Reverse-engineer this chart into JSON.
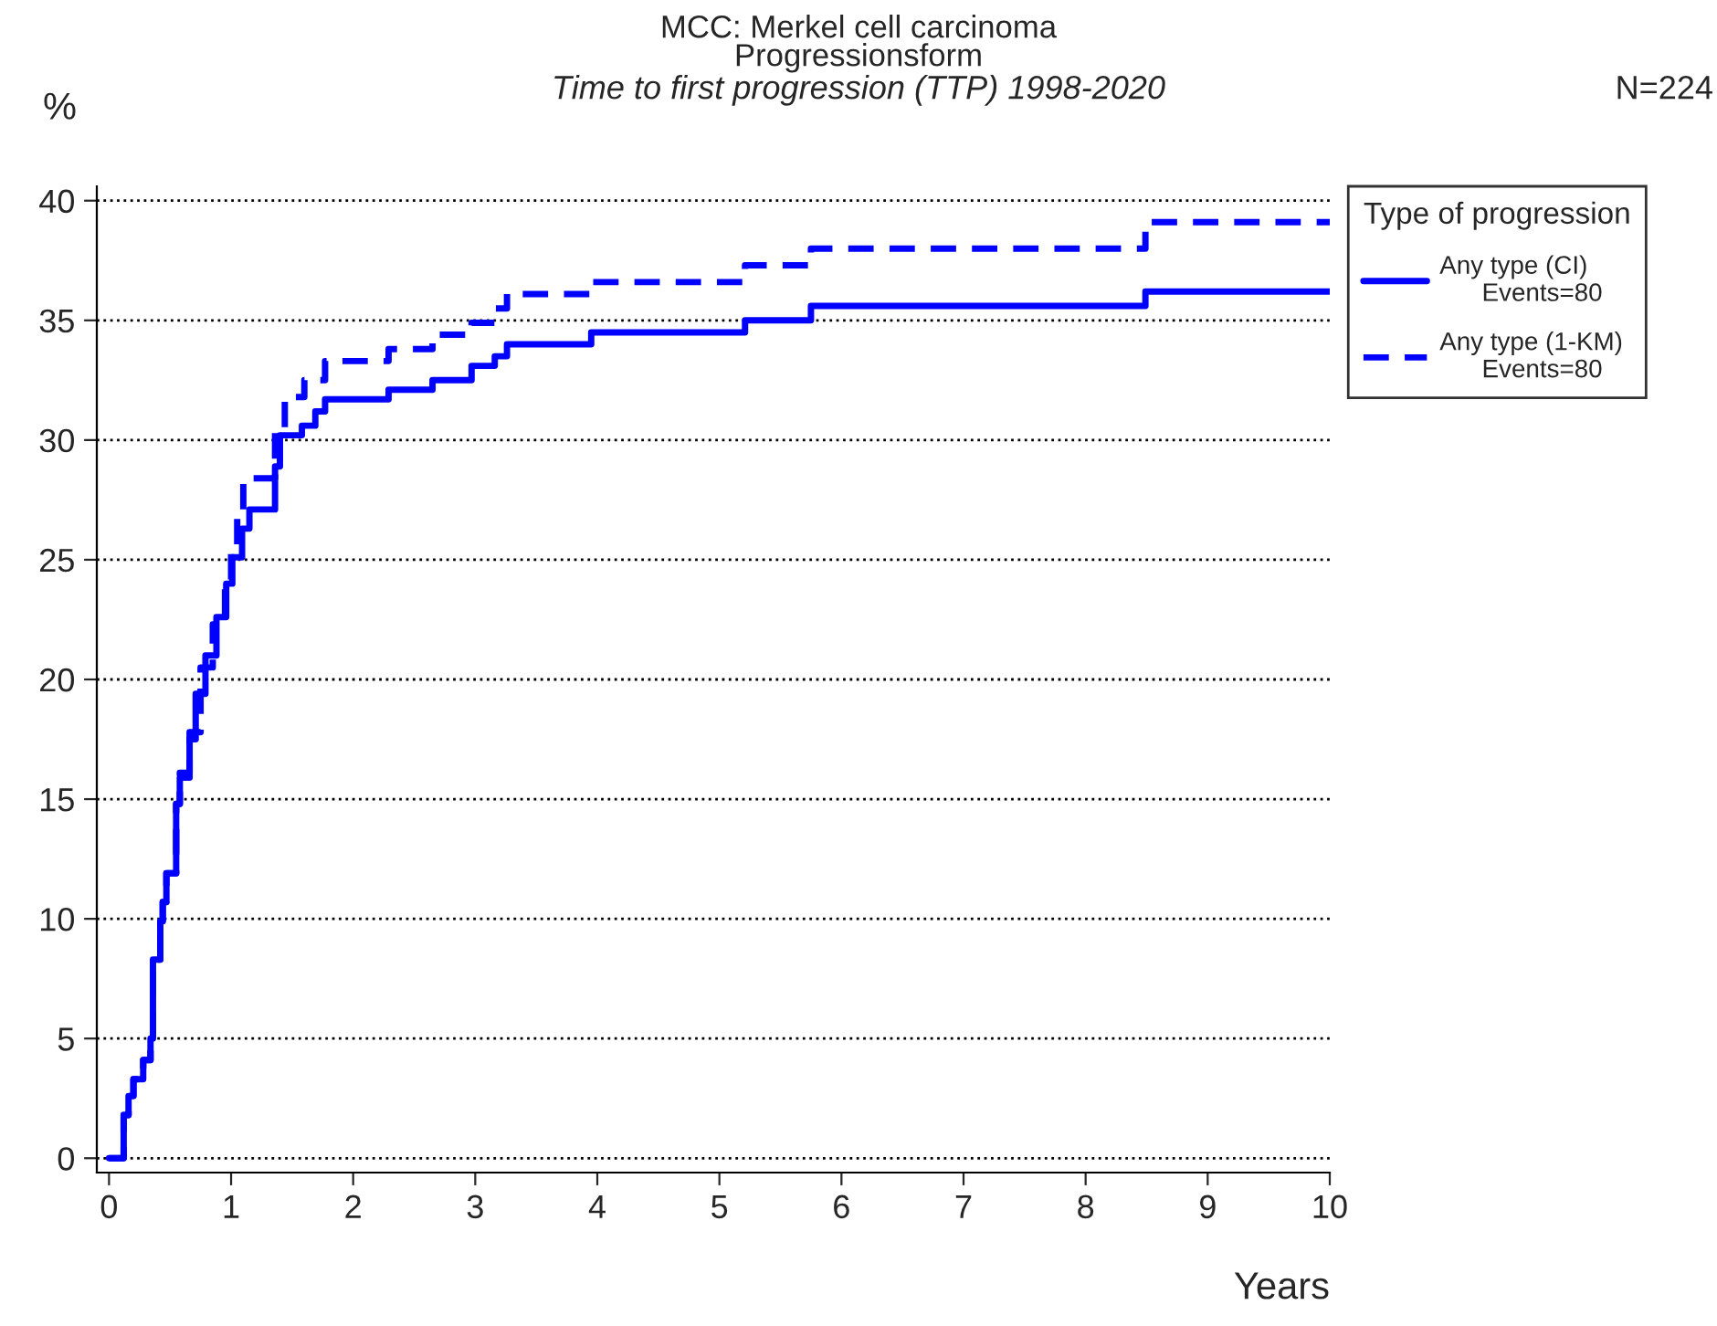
{
  "chart_data": {
    "type": "step",
    "title": "MCC: Merkel cell carcinoma\nProgressionsform",
    "subtitle": "Time to first progression (TTP) 1998-2020",
    "xlabel": "Years",
    "ylabel": "%",
    "legend_title": "Type of progression",
    "annotations": [
      "N=224"
    ],
    "xlim": [
      -0.1,
      10
    ],
    "ylim": [
      -0.6,
      40.6
    ],
    "xticks": [
      0,
      1,
      2,
      3,
      4,
      5,
      6,
      7,
      8,
      9,
      10
    ],
    "yticks": [
      0,
      5,
      10,
      15,
      20,
      25,
      30,
      35,
      40
    ],
    "grid": "y",
    "legend": "right",
    "series": [
      {
        "name": "Any type (CI)\n      Events=80",
        "color": "#0000ff",
        "line_style": "solid",
        "x": [
          0,
          0.12,
          0.16,
          0.2,
          0.28,
          0.34,
          0.36,
          0.42,
          0.44,
          0.47,
          0.55,
          0.58,
          0.66,
          0.71,
          0.79,
          0.88,
          0.96,
          1.01,
          1.09,
          1.15,
          1.36,
          1.4,
          1.58,
          1.69,
          1.77,
          2.29,
          2.65,
          2.97,
          3.16,
          3.26,
          3.95,
          5.21,
          5.75,
          8.49,
          10
        ],
        "values": [
          0,
          1.8,
          2.6,
          3.3,
          4.1,
          5.0,
          8.3,
          9.9,
          10.7,
          11.9,
          14.8,
          15.9,
          17.5,
          19.4,
          21.0,
          22.6,
          24.0,
          25.1,
          26.3,
          27.1,
          28.9,
          30.2,
          30.6,
          31.2,
          31.7,
          32.1,
          32.5,
          33.1,
          33.5,
          34.0,
          34.5,
          35.0,
          35.6,
          36.2,
          36.2
        ]
      },
      {
        "name": "Any type (1-KM)\n      Events=80",
        "color": "#0000ff",
        "line_style": "dashed",
        "x": [
          0,
          0.12,
          0.16,
          0.2,
          0.28,
          0.34,
          0.36,
          0.42,
          0.44,
          0.47,
          0.55,
          0.58,
          0.66,
          0.75,
          0.85,
          0.95,
          1.0,
          1.05,
          1.1,
          1.36,
          1.44,
          1.6,
          1.77,
          2.29,
          2.65,
          2.97,
          3.16,
          3.26,
          3.95,
          5.21,
          5.75,
          8.49,
          10
        ],
        "values": [
          0,
          1.8,
          2.6,
          3.3,
          4.1,
          5.0,
          8.3,
          9.9,
          10.7,
          11.9,
          14.8,
          16.1,
          17.8,
          20.5,
          22.3,
          24.0,
          25.5,
          26.8,
          28.4,
          30.5,
          31.8,
          32.5,
          33.3,
          33.8,
          34.4,
          34.9,
          35.5,
          36.1,
          36.6,
          37.3,
          38.0,
          39.1,
          39.1
        ]
      }
    ]
  }
}
